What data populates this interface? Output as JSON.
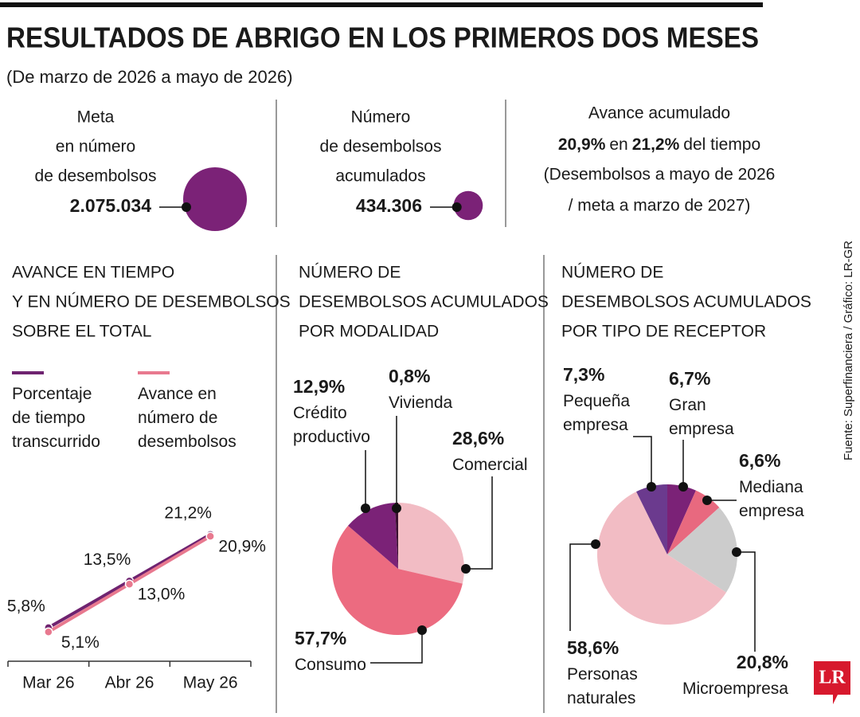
{
  "header": {
    "title": "RESULTADOS DE ABRIGO EN LOS PRIMEROS DOS MESES",
    "subtitle": "(De marzo de 2026 a mayo de 2026)"
  },
  "stats": [
    {
      "lines": [
        "Meta",
        "en número",
        "de desembolsos"
      ],
      "value": 2075034,
      "value_label": "2.075.034",
      "color": "#7b2277"
    },
    {
      "lines": [
        "Número",
        "de desembolsos",
        "acumulados"
      ],
      "value": 434306,
      "value_label": "434.306",
      "color": "#7b2277"
    }
  ],
  "progress": {
    "heading": "Avance acumulado",
    "parts": [
      "20,9%",
      "en",
      "21,2%",
      "del tiempo"
    ],
    "note": [
      "(Desembolsos a mayo de 2026",
      "/ meta a marzo de 2027)"
    ]
  },
  "chart_data": [
    {
      "type": "line",
      "title": [
        "AVANCE EN TIEMPO",
        "Y EN NÚMERO DE DESEMBOLSOS",
        "SOBRE EL TOTAL"
      ],
      "categories": [
        "Mar 26",
        "Abr 26",
        "May 26"
      ],
      "ylim": [
        0,
        25
      ],
      "series": [
        {
          "name": "Porcentaje de tiempo transcurrido",
          "color": "#6f2370",
          "values": [
            5.8,
            13.5,
            21.2
          ],
          "value_labels": [
            "5,8%",
            "13,5%",
            "21,2%"
          ]
        },
        {
          "name": "Avance en número de desembolsos",
          "color": "#e8798f",
          "values": [
            5.1,
            13.0,
            20.9
          ],
          "value_labels": [
            "5,1%",
            "13,0%",
            "20,9%"
          ]
        }
      ]
    },
    {
      "type": "pie",
      "title": [
        "NÚMERO DE",
        "DESEMBOLSOS ACUMULADOS",
        "POR MODALIDAD"
      ],
      "categories": [
        "Comercial",
        "Consumo",
        "Crédito productivo",
        "Vivienda"
      ],
      "values": [
        28.6,
        57.7,
        12.9,
        0.8
      ],
      "value_labels": [
        "28,6%",
        "57,7%",
        "12,9%",
        "0,8%"
      ],
      "colors": [
        "#f2bcc4",
        "#ec6b80",
        "#7b2277",
        "#3a1030"
      ]
    },
    {
      "type": "pie",
      "title": [
        "NÚMERO DE",
        "DESEMBOLSOS ACUMULADOS",
        "POR TIPO DE RECEPTOR"
      ],
      "categories": [
        "Gran empresa",
        "Mediana empresa",
        "Microempresa",
        "Personas naturales",
        "Pequeña empresa"
      ],
      "values": [
        6.7,
        6.6,
        20.8,
        58.6,
        7.3
      ],
      "value_labels": [
        "6,7%",
        "6,6%",
        "20,8%",
        "58,6%",
        "7,3%"
      ],
      "colors": [
        "#7b2277",
        "#e8697f",
        "#cccccc",
        "#f2bcc4",
        "#6b3a8e"
      ]
    }
  ],
  "footer": {
    "source": "Fuente: Superfinanciera / Gráfico: LR-GR",
    "logo": "LR"
  }
}
